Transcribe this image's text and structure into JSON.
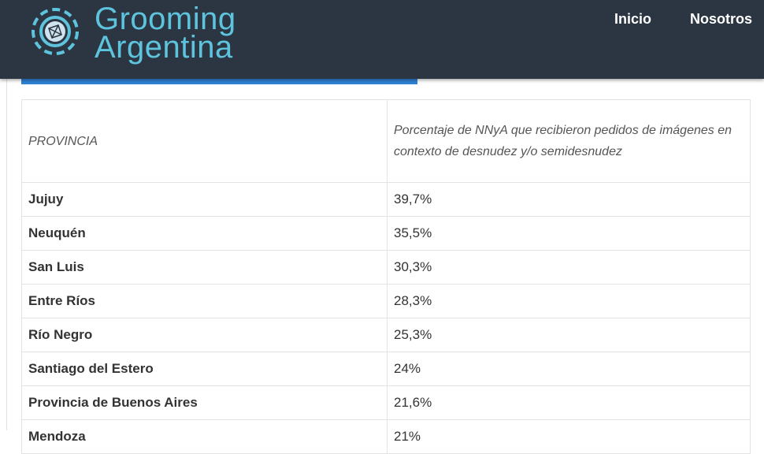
{
  "header": {
    "logo": [
      "Grooming",
      "Argentina"
    ],
    "nav": [
      "Inicio",
      "Nosotros"
    ]
  },
  "table": {
    "columns": [
      "PROVINCIA",
      "Porcentaje de NNyA que recibieron pedidos de imágenes en contexto de desnudez y/o semidesnudez"
    ],
    "rows": [
      [
        "Jujuy",
        "39,7%"
      ],
      [
        "Neuquén",
        "35,5%"
      ],
      [
        "San Luis",
        "30,3%"
      ],
      [
        "Entre Ríos",
        "28,3%"
      ],
      [
        "Río Negro",
        "25,3%"
      ],
      [
        "Santiago del Estero",
        "24%"
      ],
      [
        "Provincia de Buenos Aires",
        "21,6%"
      ],
      [
        "Mendoza",
        "21%"
      ]
    ]
  }
}
